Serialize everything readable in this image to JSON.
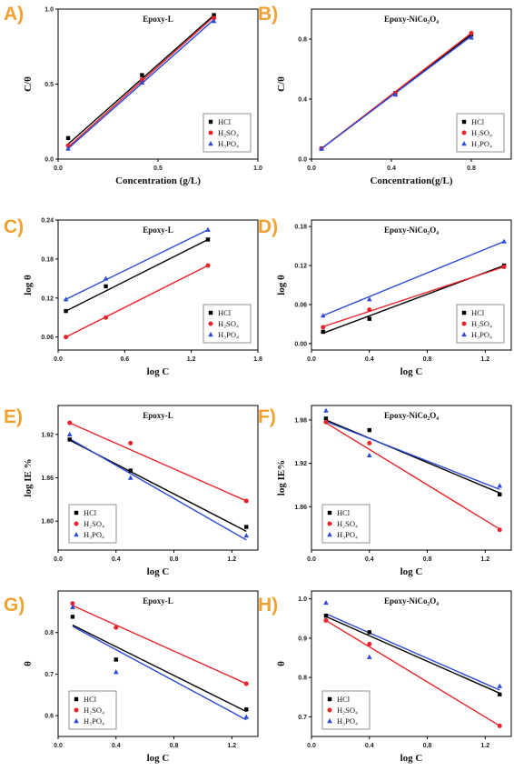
{
  "chart_data": [
    {
      "panel": "A)",
      "type": "scatter",
      "title": "Epoxy-L",
      "xlabel": "Concentration (g/L)",
      "ylabel": "C/θ",
      "xlim": [
        0,
        1.0
      ],
      "ylim": [
        0,
        1.0
      ],
      "xticks": [
        "0.0",
        "0.5",
        "1.0"
      ],
      "yticks": [
        "0.0",
        "0.5",
        "1.0"
      ],
      "legend_position": "bottom-right",
      "series": [
        {
          "name": "HCl",
          "color": "#000000",
          "marker": "square",
          "x": [
            0.05,
            0.42,
            0.78
          ],
          "y": [
            0.14,
            0.56,
            0.96
          ],
          "fit": [
            [
              0.05,
              0.1
            ],
            [
              0.78,
              0.96
            ]
          ]
        },
        {
          "name": "H₂SO₄",
          "color": "#e8242a",
          "marker": "circle",
          "x": [
            0.05,
            0.42,
            0.78
          ],
          "y": [
            0.09,
            0.53,
            0.94
          ],
          "fit": [
            [
              0.05,
              0.08
            ],
            [
              0.78,
              0.95
            ]
          ]
        },
        {
          "name": "H₃PO₄",
          "color": "#2b4ad8",
          "marker": "triangle",
          "x": [
            0.05,
            0.42,
            0.78
          ],
          "y": [
            0.07,
            0.51,
            0.92
          ],
          "fit": [
            [
              0.05,
              0.07
            ],
            [
              0.78,
              0.93
            ]
          ]
        }
      ]
    },
    {
      "panel": "B)",
      "type": "scatter",
      "title": "Epoxy-NiCo₂O₄",
      "xlabel": "Concentration(g/L)",
      "ylabel": "C/θ",
      "xlim": [
        0,
        1.0
      ],
      "ylim": [
        0,
        1.0
      ],
      "xticks": [
        "0.0",
        "0.4",
        "0.8"
      ],
      "yticks": [
        "0.0",
        "0.4",
        "0.8"
      ],
      "legend_position": "bottom-right",
      "series": [
        {
          "name": "HCl",
          "color": "#000000",
          "marker": "square",
          "x": [
            0.05,
            0.42,
            0.8
          ],
          "y": [
            0.07,
            0.44,
            0.83
          ],
          "fit": [
            [
              0.05,
              0.07
            ],
            [
              0.8,
              0.83
            ]
          ]
        },
        {
          "name": "H₂SO₄",
          "color": "#e8242a",
          "marker": "circle",
          "x": [
            0.05,
            0.42,
            0.8
          ],
          "y": [
            0.07,
            0.44,
            0.84
          ],
          "fit": [
            [
              0.05,
              0.07
            ],
            [
              0.8,
              0.84
            ]
          ]
        },
        {
          "name": "H₃PO₄",
          "color": "#2b4ad8",
          "marker": "triangle",
          "x": [
            0.05,
            0.42,
            0.8
          ],
          "y": [
            0.07,
            0.43,
            0.81
          ],
          "fit": [
            [
              0.05,
              0.07
            ],
            [
              0.8,
              0.82
            ]
          ]
        }
      ]
    },
    {
      "panel": "C)",
      "type": "scatter",
      "title": "Epoxy-L",
      "xlabel": "log C",
      "ylabel": "log θ",
      "xlim": [
        0,
        1.8
      ],
      "ylim": [
        0.04,
        0.24
      ],
      "xticks": [
        "0.0",
        "0.6",
        "1.2",
        "1.8"
      ],
      "yticks": [
        "0.06",
        "0.12",
        "0.18",
        "0.24"
      ],
      "legend_position": "bottom-right",
      "series": [
        {
          "name": "HCl",
          "color": "#000000",
          "marker": "square",
          "x": [
            0.07,
            0.43,
            1.35
          ],
          "y": [
            0.1,
            0.138,
            0.21
          ],
          "fit": [
            [
              0.07,
              0.1
            ],
            [
              1.35,
              0.21
            ]
          ]
        },
        {
          "name": "H₂SO₄",
          "color": "#e8242a",
          "marker": "circle",
          "x": [
            0.07,
            0.43,
            1.35
          ],
          "y": [
            0.06,
            0.09,
            0.17
          ],
          "fit": [
            [
              0.07,
              0.06
            ],
            [
              1.35,
              0.17
            ]
          ]
        },
        {
          "name": "H₃PO₄",
          "color": "#2b4ad8",
          "marker": "triangle",
          "x": [
            0.07,
            0.43,
            1.35
          ],
          "y": [
            0.118,
            0.15,
            0.225
          ],
          "fit": [
            [
              0.07,
              0.118
            ],
            [
              1.35,
              0.225
            ]
          ]
        }
      ]
    },
    {
      "panel": "D)",
      "type": "scatter",
      "title": "Epoxy-NiCo₂O₄",
      "xlabel": "log C",
      "ylabel": "log θ",
      "xlim": [
        0,
        1.38
      ],
      "ylim": [
        -0.01,
        0.19
      ],
      "xticks": [
        "0.0",
        "0.4",
        "0.8",
        "1.2"
      ],
      "yticks": [
        "0.00",
        "0.06",
        "0.12",
        "0.18"
      ],
      "legend_position": "bottom-right",
      "series": [
        {
          "name": "HCl",
          "color": "#000000",
          "marker": "square",
          "x": [
            0.08,
            0.4,
            1.33
          ],
          "y": [
            0.018,
            0.038,
            0.12
          ],
          "fit": [
            [
              0.08,
              0.016
            ],
            [
              1.33,
              0.12
            ]
          ]
        },
        {
          "name": "H₂SO₄",
          "color": "#e8242a",
          "marker": "circle",
          "x": [
            0.08,
            0.4,
            1.33
          ],
          "y": [
            0.025,
            0.052,
            0.118
          ],
          "fit": [
            [
              0.08,
              0.026
            ],
            [
              1.33,
              0.118
            ]
          ]
        },
        {
          "name": "H₃PO₄",
          "color": "#2b4ad8",
          "marker": "triangle",
          "x": [
            0.08,
            0.4,
            1.33
          ],
          "y": [
            0.043,
            0.068,
            0.157
          ],
          "fit": [
            [
              0.08,
              0.043
            ],
            [
              1.33,
              0.157
            ]
          ]
        }
      ]
    },
    {
      "panel": "E)",
      "type": "scatter",
      "title": "Epoxy-L",
      "xlabel": "log C",
      "ylabel": "log IE %",
      "xlim": [
        0,
        1.38
      ],
      "ylim": [
        1.76,
        1.96
      ],
      "xticks": [
        "0.0",
        "0.4",
        "0.8",
        "1.2"
      ],
      "yticks": [
        "1.80",
        "1.86",
        "1.92"
      ],
      "legend_position": "bottom-left",
      "series": [
        {
          "name": "HCl",
          "color": "#000000",
          "marker": "square",
          "x": [
            0.08,
            0.5,
            1.3
          ],
          "y": [
            1.913,
            1.87,
            1.792
          ],
          "fit": [
            [
              0.08,
              1.912
            ],
            [
              1.3,
              1.786
            ]
          ]
        },
        {
          "name": "H₂SO₄",
          "color": "#e8242a",
          "marker": "circle",
          "x": [
            0.08,
            0.5,
            1.3
          ],
          "y": [
            1.936,
            1.908,
            1.828
          ],
          "fit": [
            [
              0.08,
              1.936
            ],
            [
              1.3,
              1.828
            ]
          ]
        },
        {
          "name": "H₃PO₄",
          "color": "#2b4ad8",
          "marker": "triangle",
          "x": [
            0.08,
            0.5,
            1.3
          ],
          "y": [
            1.92,
            1.86,
            1.78
          ],
          "fit": [
            [
              0.08,
              1.914
            ],
            [
              1.3,
              1.774
            ]
          ]
        }
      ]
    },
    {
      "panel": "F)",
      "type": "scatter",
      "title": "Epoxy-NiCo₂O₄",
      "xlabel": "log C",
      "ylabel": "log IE%",
      "xlim": [
        0,
        1.38
      ],
      "ylim": [
        1.8,
        2.0
      ],
      "xticks": [
        "0.0",
        "0.4",
        "0.8",
        "1.2"
      ],
      "yticks": [
        "1.86",
        "1.92",
        "1.98"
      ],
      "legend_position": "bottom-left",
      "series": [
        {
          "name": "HCl",
          "color": "#000000",
          "marker": "square",
          "x": [
            0.1,
            0.4,
            1.3
          ],
          "y": [
            1.982,
            1.966,
            1.877
          ],
          "fit": [
            [
              0.1,
              1.98
            ],
            [
              1.3,
              1.879
            ]
          ]
        },
        {
          "name": "H₂SO₄",
          "color": "#e8242a",
          "marker": "circle",
          "x": [
            0.1,
            0.4,
            1.3
          ],
          "y": [
            1.977,
            1.948,
            1.828
          ],
          "fit": [
            [
              0.1,
              1.976
            ],
            [
              1.3,
              1.829
            ]
          ]
        },
        {
          "name": "H₃PO₄",
          "color": "#2b4ad8",
          "marker": "triangle",
          "x": [
            0.1,
            0.4,
            1.3
          ],
          "y": [
            1.993,
            1.931,
            1.889
          ],
          "fit": [
            [
              0.1,
              1.978
            ],
            [
              1.3,
              1.884
            ]
          ]
        }
      ]
    },
    {
      "panel": "G)",
      "type": "scatter",
      "title": "Epoxy-L",
      "xlabel": "log C",
      "ylabel": "θ",
      "xlim": [
        0,
        1.38
      ],
      "ylim": [
        0.55,
        0.9
      ],
      "xticks": [
        "0.0",
        "0.4",
        "0.8",
        "1.2"
      ],
      "yticks": [
        "0.6",
        "0.7",
        "0.8"
      ],
      "legend_position": "bottom-left",
      "series": [
        {
          "name": "HCl",
          "color": "#000000",
          "marker": "square",
          "x": [
            0.1,
            0.4,
            1.3
          ],
          "y": [
            0.838,
            0.735,
            0.615
          ],
          "fit": [
            [
              0.1,
              0.818
            ],
            [
              1.3,
              0.61
            ]
          ]
        },
        {
          "name": "H₂SO₄",
          "color": "#e8242a",
          "marker": "circle",
          "x": [
            0.1,
            0.4,
            1.3
          ],
          "y": [
            0.87,
            0.812,
            0.677
          ],
          "fit": [
            [
              0.1,
              0.865
            ],
            [
              1.3,
              0.677
            ]
          ]
        },
        {
          "name": "H₃PO₄",
          "color": "#2b4ad8",
          "marker": "triangle",
          "x": [
            0.1,
            0.4,
            1.3
          ],
          "y": [
            0.861,
            0.705,
            0.597
          ],
          "fit": [
            [
              0.1,
              0.815
            ],
            [
              1.3,
              0.59
            ]
          ]
        }
      ]
    },
    {
      "panel": "H)",
      "type": "scatter",
      "title": "Epoxy-NiCo₂O₄",
      "xlabel": "log C",
      "ylabel": "θ",
      "xlim": [
        0,
        1.38
      ],
      "ylim": [
        0.65,
        1.02
      ],
      "xticks": [
        "0.0",
        "0.4",
        "0.8",
        "1.2"
      ],
      "yticks": [
        "0.7",
        "0.8",
        "0.9",
        "1.0"
      ],
      "legend_position": "bottom-left",
      "series": [
        {
          "name": "HCl",
          "color": "#000000",
          "marker": "square",
          "x": [
            0.1,
            0.4,
            1.3
          ],
          "y": [
            0.957,
            0.915,
            0.757
          ],
          "fit": [
            [
              0.1,
              0.955
            ],
            [
              1.3,
              0.76
            ]
          ]
        },
        {
          "name": "H₂SO₄",
          "color": "#e8242a",
          "marker": "circle",
          "x": [
            0.1,
            0.4,
            1.3
          ],
          "y": [
            0.945,
            0.885,
            0.677
          ],
          "fit": [
            [
              0.1,
              0.945
            ],
            [
              1.3,
              0.677
            ]
          ]
        },
        {
          "name": "H₃PO₄",
          "color": "#2b4ad8",
          "marker": "triangle",
          "x": [
            0.1,
            0.4,
            1.3
          ],
          "y": [
            0.99,
            0.852,
            0.778
          ],
          "fit": [
            [
              0.1,
              0.962
            ],
            [
              1.3,
              0.768
            ]
          ]
        }
      ]
    }
  ]
}
